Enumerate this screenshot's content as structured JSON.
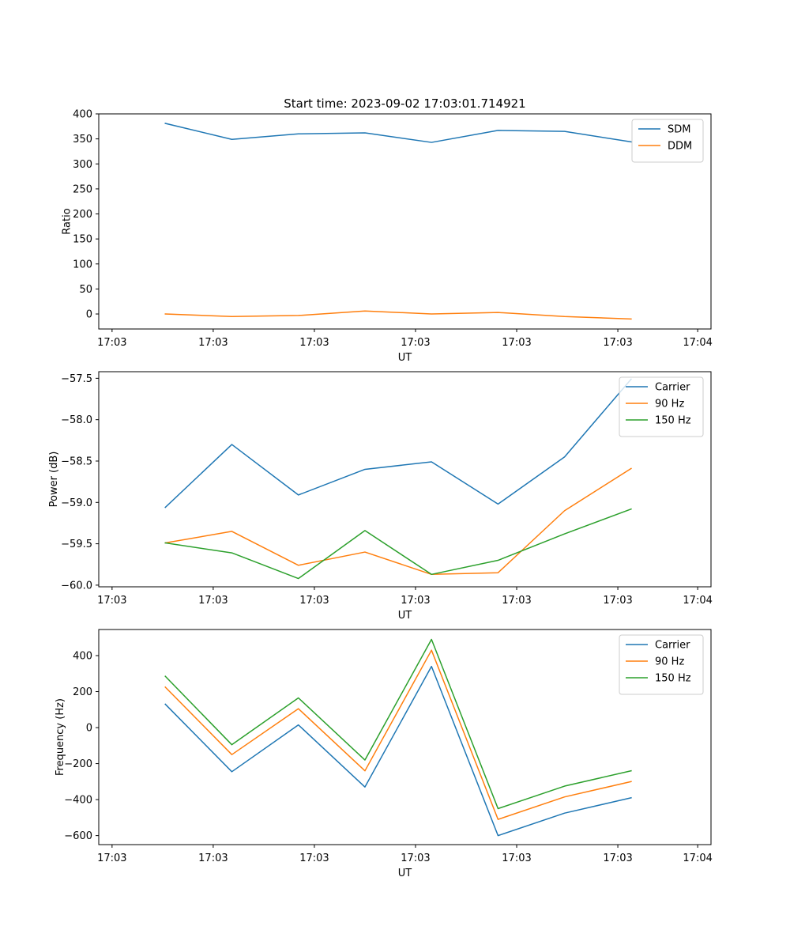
{
  "figure_title": "Start time: 2023-09-02 17:03:01.714921",
  "colors": {
    "blue": "#1f77b4",
    "orange": "#ff7f0e",
    "green": "#2ca02c"
  },
  "chart_data": [
    {
      "type": "line",
      "title": "Start time: 2023-09-02 17:03:01.714921",
      "xlabel": "UT",
      "ylabel": "Ratio",
      "x": [
        1,
        2,
        3,
        4,
        5,
        6,
        7,
        8
      ],
      "xlim": [
        0,
        9.2
      ],
      "xticks": [
        0.2,
        1.72,
        3.24,
        4.76,
        6.28,
        7.8,
        9.0
      ],
      "xtick_labels": [
        "17:03",
        "17:03",
        "17:03",
        "17:03",
        "17:03",
        "17:03",
        "17:04"
      ],
      "ylim": [
        -30,
        400
      ],
      "yticks": [
        0,
        50,
        100,
        150,
        200,
        250,
        300,
        350,
        400
      ],
      "ytick_labels": [
        "0",
        "50",
        "100",
        "150",
        "200",
        "250",
        "300",
        "350",
        "400"
      ],
      "legend_position": "upper-right",
      "series": [
        {
          "name": "SDM",
          "color": "#1f77b4",
          "values": [
            381,
            349,
            360,
            362,
            343,
            367,
            365,
            344
          ]
        },
        {
          "name": "DDM",
          "color": "#ff7f0e",
          "values": [
            0,
            -5,
            -3,
            6,
            0,
            3,
            -5,
            -10
          ]
        }
      ]
    },
    {
      "type": "line",
      "title": "",
      "xlabel": "UT",
      "ylabel": "Power (dB)",
      "x": [
        1,
        2,
        3,
        4,
        5,
        6,
        7,
        8
      ],
      "xlim": [
        0,
        9.2
      ],
      "xticks": [
        0.2,
        1.72,
        3.24,
        4.76,
        6.28,
        7.8,
        9.0
      ],
      "xtick_labels": [
        "17:03",
        "17:03",
        "17:03",
        "17:03",
        "17:03",
        "17:03",
        "17:04"
      ],
      "ylim": [
        -60.02,
        -57.42
      ],
      "yticks": [
        -60.0,
        -59.5,
        -59.0,
        -58.5,
        -58.0,
        -57.5
      ],
      "ytick_labels": [
        "−60.0",
        "−59.5",
        "−59.0",
        "−58.5",
        "−58.0",
        "−57.5"
      ],
      "legend_position": "upper-right",
      "series": [
        {
          "name": "Carrier",
          "color": "#1f77b4",
          "values": [
            -59.06,
            -58.3,
            -58.91,
            -58.6,
            -58.51,
            -59.02,
            -58.45,
            -57.51
          ]
        },
        {
          "name": "90 Hz",
          "color": "#ff7f0e",
          "values": [
            -59.49,
            -59.35,
            -59.76,
            -59.6,
            -59.87,
            -59.85,
            -59.1,
            -58.59
          ]
        },
        {
          "name": "150 Hz",
          "color": "#2ca02c",
          "values": [
            -59.49,
            -59.61,
            -59.92,
            -59.34,
            -59.87,
            -59.7,
            -59.38,
            -59.08
          ]
        }
      ]
    },
    {
      "type": "line",
      "title": "",
      "xlabel": "UT",
      "ylabel": "Frequency (Hz)",
      "x": [
        1,
        2,
        3,
        4,
        5,
        6,
        7,
        8
      ],
      "xlim": [
        0,
        9.2
      ],
      "xticks": [
        0.2,
        1.72,
        3.24,
        4.76,
        6.28,
        7.8,
        9.0
      ],
      "xtick_labels": [
        "17:03",
        "17:03",
        "17:03",
        "17:03",
        "17:03",
        "17:03",
        "17:04"
      ],
      "ylim": [
        -650,
        545
      ],
      "yticks": [
        -600,
        -400,
        -200,
        0,
        200,
        400
      ],
      "ytick_labels": [
        "−600",
        "−400",
        "−200",
        "0",
        "200",
        "400"
      ],
      "legend_position": "upper-right",
      "series": [
        {
          "name": "Carrier",
          "color": "#1f77b4",
          "values": [
            130,
            -245,
            15,
            -330,
            340,
            -600,
            -475,
            -390
          ]
        },
        {
          "name": "90 Hz",
          "color": "#ff7f0e",
          "values": [
            225,
            -150,
            105,
            -240,
            430,
            -510,
            -385,
            -300
          ]
        },
        {
          "name": "150 Hz",
          "color": "#2ca02c",
          "values": [
            285,
            -95,
            165,
            -180,
            490,
            -450,
            -325,
            -240
          ]
        }
      ]
    }
  ]
}
